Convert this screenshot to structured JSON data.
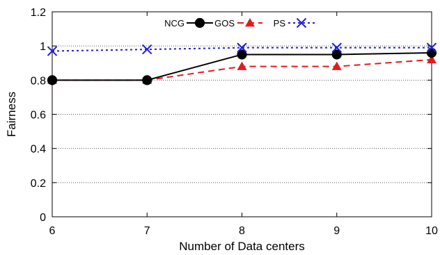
{
  "chart_data": {
    "type": "line",
    "title": "",
    "xlabel": "Number of Data centers",
    "ylabel": "Fairness",
    "x": [
      6,
      7,
      8,
      9,
      10
    ],
    "xlim": [
      6,
      10
    ],
    "ylim": [
      0,
      1.2
    ],
    "x_ticks": [
      "6",
      "7",
      "8",
      "9",
      "10"
    ],
    "y_ticks": [
      "0",
      "0.2",
      "0.4",
      "0.6",
      "0.8",
      "1",
      "1.2"
    ],
    "grid": "horizontal dotted",
    "legend_placement": "top-center",
    "series": [
      {
        "name": "NCG",
        "values": [
          0.8,
          0.8,
          0.95,
          0.95,
          0.96
        ],
        "color": "#000000",
        "marker": "circle",
        "line": "solid"
      },
      {
        "name": "GOS",
        "values": [
          0.8,
          0.8,
          0.88,
          0.88,
          0.92
        ],
        "color": "#e41a1c",
        "marker": "triangle",
        "line": "dashed"
      },
      {
        "name": "PS",
        "values": [
          0.97,
          0.98,
          0.99,
          0.99,
          0.99
        ],
        "color": "#1f1fd6",
        "marker": "x",
        "line": "dotted"
      }
    ]
  }
}
